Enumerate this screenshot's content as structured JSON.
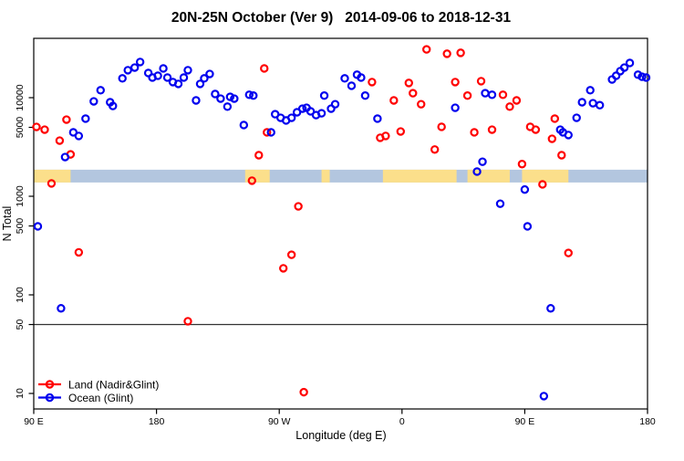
{
  "chart_data": {
    "type": "scatter",
    "title": "20N-25N October (Ver 9)   2014-09-06 to 2018-12-31",
    "xlabel": "Longitude (deg E)",
    "ylabel": "N Total",
    "x_axis": {
      "note": "axis is degrees eastward from 90E at left edge; wraps 90E > 180 > 90W > 0 > 90E > 180",
      "range_deg": [
        0,
        450
      ],
      "ticks": [
        {
          "deg": 0,
          "label": "90 E"
        },
        {
          "deg": 90,
          "label": "180"
        },
        {
          "deg": 180,
          "label": "90 W"
        },
        {
          "deg": 270,
          "label": "0"
        },
        {
          "deg": 360,
          "label": "90 E"
        },
        {
          "deg": 450,
          "label": "180"
        }
      ]
    },
    "y_axis": {
      "scale": "log",
      "range": [
        7,
        40000
      ],
      "ticks": [
        "10",
        "50",
        "100",
        "500",
        "1000",
        "5000",
        "10000"
      ],
      "reference_line_value": 50
    },
    "map_strip": {
      "description": "land/ocean strip for 20N-25N plotted across the longitude axis",
      "value_range": [
        1380,
        1860
      ],
      "ocean_color": "#B3C6DF",
      "land_color": "#FBDF8B",
      "land_segments_deg": [
        [
          0,
          27
        ],
        [
          155,
          173
        ],
        [
          211,
          217
        ],
        [
          256,
          310
        ],
        [
          318,
          349
        ],
        [
          358,
          392
        ]
      ]
    },
    "legend": [
      {
        "label": "Land (Nadir&Glint)",
        "color": "#FF0000"
      },
      {
        "label": "Ocean (Glint)",
        "color": "#0000EE"
      }
    ],
    "series": [
      {
        "name": "Land (Nadir&Glint)",
        "color": "#FF0000",
        "points": [
          [
            2,
            5050
          ],
          [
            8,
            4740
          ],
          [
            13,
            1350
          ],
          [
            19,
            3670
          ],
          [
            24,
            5990
          ],
          [
            27,
            2660
          ],
          [
            33,
            270
          ],
          [
            113,
            54
          ],
          [
            160,
            1440
          ],
          [
            165,
            2610
          ],
          [
            169,
            19800
          ],
          [
            171,
            4450
          ],
          [
            183,
            186
          ],
          [
            189,
            255
          ],
          [
            194,
            790
          ],
          [
            198,
            10.3
          ],
          [
            248,
            14400
          ],
          [
            254,
            3920
          ],
          [
            258,
            4090
          ],
          [
            264,
            9380
          ],
          [
            269,
            4540
          ],
          [
            275,
            14100
          ],
          [
            278,
            11100
          ],
          [
            284,
            8580
          ],
          [
            288,
            30900
          ],
          [
            294,
            2980
          ],
          [
            299,
            5060
          ],
          [
            303,
            27900
          ],
          [
            309,
            14400
          ],
          [
            313,
            28500
          ],
          [
            318,
            10500
          ],
          [
            323,
            4450
          ],
          [
            328,
            14700
          ],
          [
            336,
            4740
          ],
          [
            344,
            10700
          ],
          [
            349,
            8110
          ],
          [
            354,
            9380
          ],
          [
            358,
            2120
          ],
          [
            364,
            5060
          ],
          [
            368,
            4740
          ],
          [
            373,
            1320
          ],
          [
            380,
            3830
          ],
          [
            382,
            6130
          ],
          [
            387,
            2610
          ],
          [
            392,
            266
          ]
        ]
      },
      {
        "name": "Ocean (Glint)",
        "color": "#0000EE",
        "points": [
          [
            3,
            495
          ],
          [
            20,
            73
          ],
          [
            23,
            2500
          ],
          [
            29,
            4450
          ],
          [
            33,
            4090
          ],
          [
            38,
            6130
          ],
          [
            44,
            9180
          ],
          [
            49,
            11900
          ],
          [
            56,
            8990
          ],
          [
            58,
            8240
          ],
          [
            65,
            15700
          ],
          [
            69,
            19000
          ],
          [
            74,
            20200
          ],
          [
            78,
            23000
          ],
          [
            84,
            17800
          ],
          [
            87,
            16000
          ],
          [
            91,
            16700
          ],
          [
            95,
            19800
          ],
          [
            98,
            16000
          ],
          [
            102,
            14400
          ],
          [
            106,
            13800
          ],
          [
            110,
            16000
          ],
          [
            113,
            19000
          ],
          [
            119,
            9380
          ],
          [
            122,
            13800
          ],
          [
            125,
            15700
          ],
          [
            129,
            17400
          ],
          [
            133,
            10900
          ],
          [
            137,
            9780
          ],
          [
            142,
            8110
          ],
          [
            144,
            10200
          ],
          [
            147,
            9780
          ],
          [
            154,
            5280
          ],
          [
            158,
            10700
          ],
          [
            161,
            10500
          ],
          [
            174,
            4450
          ],
          [
            177,
            6800
          ],
          [
            181,
            6250
          ],
          [
            185,
            5870
          ],
          [
            189,
            6250
          ],
          [
            193,
            7110
          ],
          [
            197,
            7740
          ],
          [
            200,
            7900
          ],
          [
            203,
            7270
          ],
          [
            207,
            6660
          ],
          [
            211,
            6950
          ],
          [
            213,
            10500
          ],
          [
            218,
            7740
          ],
          [
            221,
            8580
          ],
          [
            228,
            15700
          ],
          [
            233,
            13200
          ],
          [
            237,
            17100
          ],
          [
            240,
            16000
          ],
          [
            243,
            10500
          ],
          [
            252,
            6130
          ],
          [
            309,
            7900
          ],
          [
            325,
            1780
          ],
          [
            329,
            2240
          ],
          [
            331,
            11100
          ],
          [
            336,
            10700
          ],
          [
            342,
            840
          ],
          [
            360,
            1170
          ],
          [
            362,
            495
          ],
          [
            374,
            9.4
          ],
          [
            379,
            73
          ],
          [
            386,
            4740
          ],
          [
            388,
            4450
          ],
          [
            392,
            4180
          ],
          [
            398,
            6250
          ],
          [
            402,
            8990
          ],
          [
            408,
            11900
          ],
          [
            410,
            8790
          ],
          [
            415,
            8390
          ],
          [
            424,
            15300
          ],
          [
            427,
            16700
          ],
          [
            430,
            18600
          ],
          [
            433,
            20200
          ],
          [
            437,
            22500
          ],
          [
            443,
            17100
          ],
          [
            446,
            16300
          ],
          [
            449,
            16000
          ]
        ]
      }
    ]
  }
}
